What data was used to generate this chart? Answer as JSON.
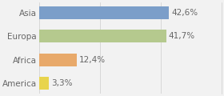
{
  "categories": [
    "America",
    "Africa",
    "Europa",
    "Asia"
  ],
  "values": [
    3.3,
    12.4,
    41.7,
    42.6
  ],
  "labels": [
    "3,3%",
    "12,4%",
    "41,7%",
    "42,6%"
  ],
  "bar_colors": [
    "#e8d44d",
    "#e8a96a",
    "#b5c98e",
    "#7b9ec9"
  ],
  "background_color": "#f2f2f2",
  "xlim": [
    0,
    60
  ],
  "label_fontsize": 7.5,
  "tick_fontsize": 7.5,
  "bar_height": 0.55
}
